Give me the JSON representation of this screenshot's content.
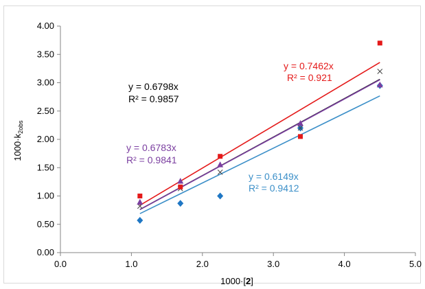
{
  "chart_data": {
    "type": "scatter",
    "xlabel": {
      "prefix": "1000·[",
      "bold": "2",
      "suffix": "]"
    },
    "ylabel": {
      "prefix": "1000·k",
      "sub": "2obs"
    },
    "xlim": [
      0.0,
      5.0
    ],
    "ylim": [
      0.0,
      4.0
    ],
    "x_ticks": [
      "0.0",
      "1.0",
      "2.0",
      "3.0",
      "4.0",
      "5.0"
    ],
    "y_ticks": [
      "0.00",
      "0.50",
      "1.00",
      "1.50",
      "2.00",
      "2.50",
      "3.00",
      "3.50",
      "4.00"
    ],
    "grid": false,
    "series": [
      {
        "marker": "square",
        "color": "#e41a1a",
        "points": [
          [
            1.12,
            1.0
          ],
          [
            1.69,
            1.16
          ],
          [
            2.25,
            1.7
          ],
          [
            3.38,
            2.05
          ],
          [
            4.5,
            3.7
          ]
        ],
        "trend_slope": 0.7462,
        "trend_range": [
          1.12,
          4.5
        ],
        "equation": "y = 0.7462x",
        "r2": "R² = 0.921"
      },
      {
        "marker": "x",
        "color": "#444444",
        "line_color": "#000000",
        "points": [
          [
            1.12,
            0.82
          ],
          [
            1.69,
            1.13
          ],
          [
            2.25,
            1.42
          ],
          [
            3.38,
            2.2
          ],
          [
            4.5,
            3.2
          ]
        ],
        "trend_slope": 0.6798,
        "trend_range": [
          1.12,
          4.5
        ],
        "equation": "y = 0.6798x",
        "r2": "R² = 0.9857"
      },
      {
        "marker": "triangle",
        "color": "#7b3fa0",
        "points": [
          [
            1.12,
            0.89
          ],
          [
            1.69,
            1.26
          ],
          [
            2.25,
            1.55
          ],
          [
            3.38,
            2.28
          ],
          [
            4.5,
            2.96
          ]
        ],
        "trend_slope": 0.6783,
        "trend_range": [
          1.12,
          4.5
        ],
        "equation": "y = 0.6783x",
        "r2": "R² = 0.9841"
      },
      {
        "marker": "diamond",
        "color": "#1f77c4",
        "line_color": "#3b8fc8",
        "points": [
          [
            1.12,
            0.57
          ],
          [
            1.69,
            0.87
          ],
          [
            2.25,
            1.0
          ],
          [
            3.38,
            2.2
          ],
          [
            4.5,
            2.95
          ]
        ],
        "trend_slope": 0.6149,
        "trend_range": [
          1.12,
          4.5
        ],
        "equation": "y = 0.6149x",
        "r2": "R² = 0.9412"
      }
    ]
  }
}
